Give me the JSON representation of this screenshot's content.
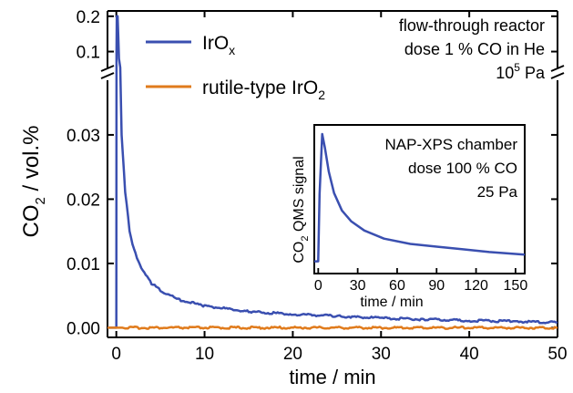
{
  "chart_data": [
    {
      "type": "line",
      "xlabel": "time / min",
      "ylabel_main": "CO",
      "ylabel_sub": "2",
      "ylabel_rest": " / vol.%",
      "x_ticks": [
        "0",
        "10",
        "20",
        "30",
        "40",
        "50"
      ],
      "x_tick_values": [
        0,
        10,
        20,
        30,
        40,
        50
      ],
      "xlim": [
        -1,
        50
      ],
      "y_axis_break": true,
      "y_ticks_lower": [
        "0.00",
        "0.01",
        "0.02",
        "0.03"
      ],
      "y_tick_values_lower": [
        0,
        0.01,
        0.02,
        0.03
      ],
      "ylim_lower": [
        -0.0015,
        0.0385
      ],
      "y_ticks_upper": [
        "0.1",
        "0.2"
      ],
      "y_tick_values_upper": [
        0.1,
        0.2
      ],
      "ylim_upper": [
        0.055,
        0.215
      ],
      "legend_placement": "top-left",
      "annotation": {
        "line1": "flow-through reactor",
        "line2": "dose 1 % CO in He",
        "line3_base": "10",
        "line3_sup": "5",
        "line3_unit": " Pa"
      },
      "series": [
        {
          "name": "IrO",
          "name_sub": "x",
          "color": "#3a4fb0",
          "x": [
            -1,
            0,
            0.05,
            0.15,
            0.3,
            0.6,
            1,
            1.5,
            2,
            3,
            4,
            5,
            7,
            10,
            15,
            20,
            25,
            30,
            35,
            40,
            45,
            50
          ],
          "y": [
            0.0,
            0.0,
            0.2,
            0.2,
            0.08,
            0.03,
            0.0212,
            0.0152,
            0.0121,
            0.0088,
            0.0069,
            0.0058,
            0.0044,
            0.0034,
            0.0025,
            0.0021,
            0.0018,
            0.0015,
            0.0013,
            0.0011,
            0.001,
            0.0008
          ]
        },
        {
          "name": "rutile-type IrO",
          "name_sub": "2",
          "color": "#e07b1c",
          "x": [
            -1,
            50
          ],
          "y": [
            0.0,
            0.0
          ]
        }
      ]
    },
    {
      "type": "line",
      "title_lines": [
        "NAP-XPS chamber",
        "dose 100 % CO",
        "25 Pa"
      ],
      "xlabel": "time / min",
      "ylabel_pre": "CO",
      "ylabel_sub": "2",
      "ylabel_post": " QMS signal",
      "x_ticks": [
        "0",
        "30",
        "60",
        "90",
        "120",
        "150"
      ],
      "x_tick_values": [
        0,
        30,
        60,
        90,
        120,
        150
      ],
      "xlim": [
        -3,
        157
      ],
      "y_ticks": [],
      "ylim": [
        0,
        1
      ],
      "series": [
        {
          "color": "#3a4fb0",
          "x": [
            -3,
            0,
            1,
            3,
            5,
            8,
            12,
            18,
            25,
            35,
            50,
            70,
            90,
            110,
            130,
            157
          ],
          "y": [
            0.05,
            0.05,
            0.55,
            1.0,
            0.9,
            0.72,
            0.56,
            0.43,
            0.35,
            0.28,
            0.22,
            0.18,
            0.16,
            0.14,
            0.12,
            0.1
          ]
        }
      ]
    }
  ]
}
